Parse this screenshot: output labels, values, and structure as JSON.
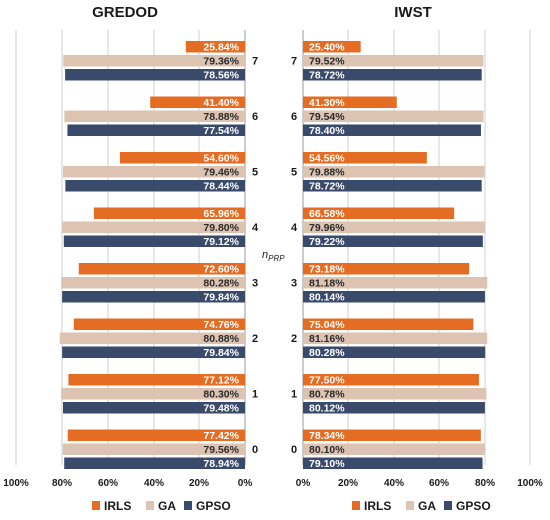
{
  "chart_data": {
    "type": "bar",
    "orientation": "horizontal",
    "center_label": {
      "main": "n",
      "sub": "PRP"
    },
    "categories": [
      "7",
      "6",
      "5",
      "4",
      "3",
      "2",
      "1",
      "0"
    ],
    "xlim": [
      0,
      100
    ],
    "xticks": [
      "100%",
      "80%",
      "60%",
      "40%",
      "20%",
      "0%"
    ],
    "xticks_right": [
      "0%",
      "20%",
      "40%",
      "60%",
      "80%",
      "100%"
    ],
    "grid": true,
    "legend_position": "bottom",
    "colors": {
      "IRLS": "#e46c23",
      "GA": "#dcc3b2",
      "GPSO": "#3a4a6b"
    },
    "panels": [
      {
        "title": "GREDOD",
        "direction": "left",
        "series": [
          {
            "name": "IRLS",
            "values": [
              25.84,
              41.4,
              54.6,
              65.96,
              72.6,
              74.76,
              77.12,
              77.42
            ],
            "labels": [
              "25.84%",
              "41.40%",
              "54.60%",
              "65.96%",
              "72.60%",
              "74.76%",
              "77.12%",
              "77.42%"
            ]
          },
          {
            "name": "GA",
            "values": [
              79.36,
              78.88,
              79.46,
              79.8,
              80.28,
              80.88,
              80.3,
              79.56
            ],
            "labels": [
              "79.36%",
              "78.88%",
              "79.46%",
              "79.80%",
              "80.28%",
              "80.88%",
              "80.30%",
              "79.56%"
            ]
          },
          {
            "name": "GPSO",
            "values": [
              78.56,
              77.54,
              78.44,
              79.12,
              79.84,
              79.84,
              79.48,
              78.94
            ],
            "labels": [
              "78.56%",
              "77.54%",
              "78.44%",
              "79.12%",
              "79.84%",
              "79.84%",
              "79.48%",
              "78.94%"
            ]
          }
        ]
      },
      {
        "title": "IWST",
        "direction": "right",
        "series": [
          {
            "name": "IRLS",
            "values": [
              25.4,
              41.3,
              54.56,
              66.58,
              73.18,
              75.04,
              77.5,
              78.34
            ],
            "labels": [
              "25.40%",
              "41.30%",
              "54.56%",
              "66.58%",
              "73.18%",
              "75.04%",
              "77.50%",
              "78.34%"
            ]
          },
          {
            "name": "GA",
            "values": [
              79.52,
              79.54,
              79.88,
              79.96,
              81.18,
              81.16,
              80.78,
              80.1
            ],
            "labels": [
              "79.52%",
              "79.54%",
              "79.88%",
              "79.96%",
              "81.18%",
              "81.16%",
              "80.78%",
              "80.10%"
            ]
          },
          {
            "name": "GPSO",
            "values": [
              78.72,
              78.4,
              78.72,
              79.22,
              80.14,
              80.28,
              80.12,
              79.1
            ],
            "labels": [
              "78.72%",
              "78.40%",
              "78.72%",
              "79.22%",
              "80.14%",
              "80.28%",
              "80.12%",
              "79.10%"
            ]
          }
        ]
      }
    ]
  }
}
